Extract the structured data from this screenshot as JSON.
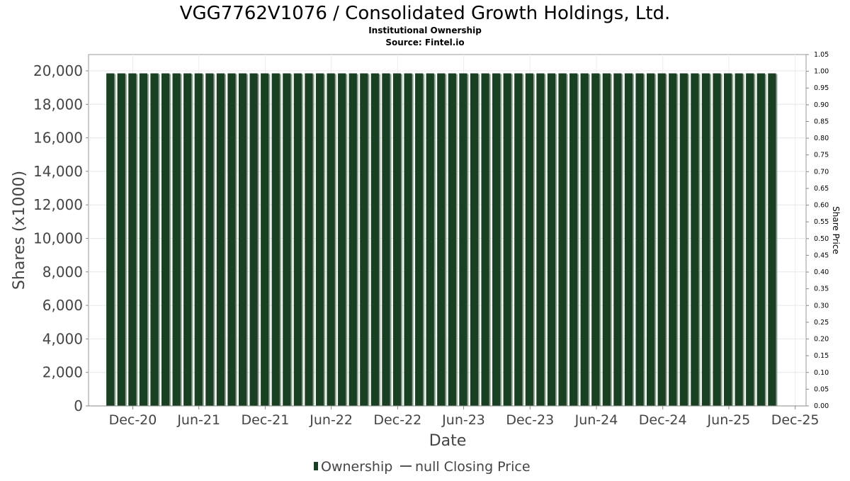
{
  "chart_data": {
    "type": "bar",
    "title": "VGG7762V1076 / Consolidated Growth Holdings, Ltd.",
    "subtitle": "Institutional Ownership",
    "source": "Source: Fintel.io",
    "xlabel": "Date",
    "ylabel": "Shares (x1000)",
    "y2label": "Share Price",
    "ylim": [
      0,
      20000
    ],
    "y_ticks": [
      "0",
      "2,000",
      "4,000",
      "6,000",
      "8,000",
      "10,000",
      "12,000",
      "14,000",
      "16,000",
      "18,000",
      "20,000"
    ],
    "y2lim": [
      0,
      1.05
    ],
    "y2_ticks": [
      "0.00",
      "0.05",
      "0.10",
      "0.15",
      "0.20",
      "0.25",
      "0.30",
      "0.35",
      "0.40",
      "0.45",
      "0.50",
      "0.55",
      "0.60",
      "0.65",
      "0.70",
      "0.75",
      "0.80",
      "0.85",
      "0.90",
      "0.95",
      "1.00",
      "1.05"
    ],
    "x_ticks": [
      "Dec-20",
      "Jun-21",
      "Dec-21",
      "Jun-22",
      "Dec-22",
      "Jun-23",
      "Dec-23",
      "Jun-24",
      "Dec-24",
      "Jun-25",
      "Dec-25"
    ],
    "x_start": "2020-08-01",
    "x_end": "2025-12-31",
    "grid": true,
    "legend": {
      "placement": "bottom",
      "items": [
        {
          "name": "Ownership",
          "kind": "bar",
          "color": "#1a4023"
        },
        {
          "name": "null Closing Price",
          "kind": "line",
          "color": "#555555"
        }
      ]
    },
    "series": [
      {
        "name": "Ownership",
        "color": "#1a4023",
        "bar_start": "2020-09-30",
        "bar_step_months": 1,
        "values": [
          19850,
          19850,
          19850,
          19850,
          19850,
          19850,
          19850,
          19850,
          19850,
          19850,
          19850,
          19850,
          19850,
          19850,
          19850,
          19850,
          19850,
          19850,
          19850,
          19850,
          19850,
          19850,
          19850,
          19850,
          19850,
          19850,
          19850,
          19850,
          19850,
          19850,
          19850,
          19850,
          19850,
          19850,
          19850,
          19850,
          19850,
          19850,
          19850,
          19850,
          19850,
          19850,
          19850,
          19850,
          19850,
          19850,
          19850,
          19850,
          19850,
          19850,
          19850,
          19850,
          19850,
          19850,
          19850,
          19850,
          19850,
          19850,
          19850,
          19850,
          19850
        ]
      }
    ]
  }
}
